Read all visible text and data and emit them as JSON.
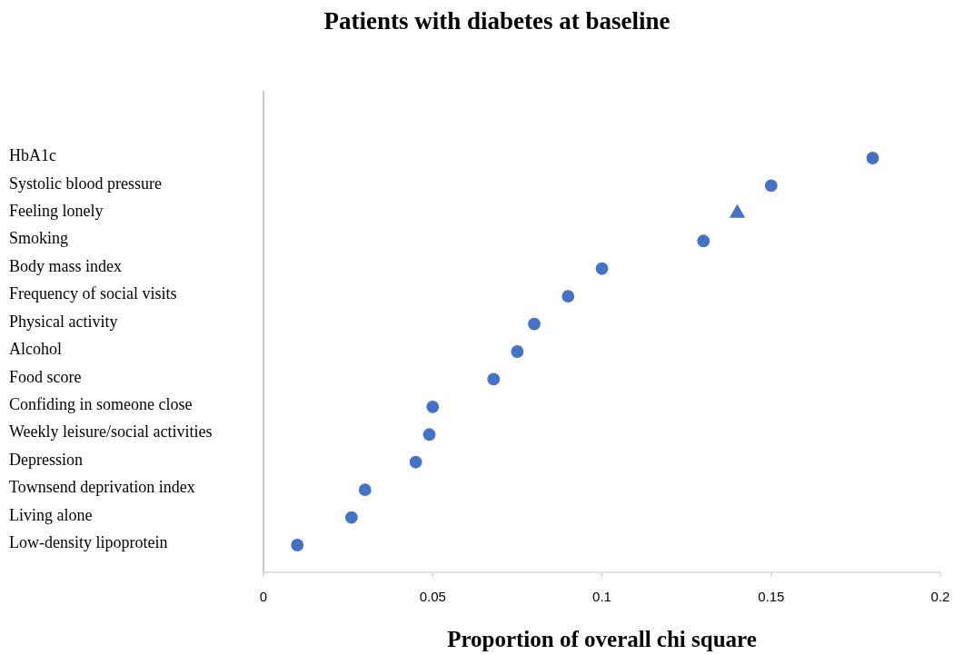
{
  "chart_data": {
    "type": "scatter",
    "title": "Patients with diabetes at baseline",
    "xlabel": "Proportion of overall chi square",
    "orientation": "horizontal",
    "categories": [
      "HbA1c",
      "Systolic blood pressure",
      "Feeling lonely",
      "Smoking",
      "Body mass index",
      "Frequency of social visits",
      "Physical activity",
      "Alcohol",
      "Food score",
      "Confiding in someone close",
      "Weekly leisure/social activities",
      "Depression",
      "Townsend deprivation index",
      "Living alone",
      "Low-density lipoprotein"
    ],
    "series": [
      {
        "color": "#4472c4",
        "marker": "circle",
        "values": [
          0.18,
          0.15,
          null,
          0.13,
          0.1,
          0.09,
          0.08,
          0.075,
          0.068,
          0.05,
          0.049,
          0.045,
          0.03,
          0.026,
          0.01
        ]
      },
      {
        "color": "#4472c4",
        "marker": "triangle",
        "values": [
          null,
          null,
          0.14,
          null,
          null,
          null,
          null,
          null,
          null,
          null,
          null,
          null,
          null,
          null,
          null
        ]
      }
    ],
    "xlim": [
      0,
      0.2
    ],
    "xticks": [
      0,
      0.05,
      0.1,
      0.15,
      0.2
    ],
    "grid": false
  }
}
